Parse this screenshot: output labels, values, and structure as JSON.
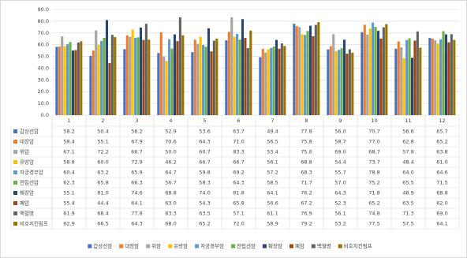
{
  "chart_data": {
    "type": "bar",
    "categories": [
      "1",
      "2",
      "3",
      "4",
      "5",
      "6",
      "7",
      "8",
      "9",
      "10",
      "11",
      "12"
    ],
    "ylim": [
      0,
      90
    ],
    "yticks": [
      {
        "value": 0,
        "label": "0.0"
      },
      {
        "value": 10,
        "label": "10.0"
      },
      {
        "value": 20,
        "label": "20.0"
      },
      {
        "value": 30,
        "label": "30.0"
      },
      {
        "value": 40,
        "label": "40.0"
      },
      {
        "value": 50,
        "label": "50.0"
      },
      {
        "value": 60,
        "label": "60.0"
      },
      {
        "value": 70,
        "label": "70.0"
      },
      {
        "value": 80,
        "label": "80.0"
      },
      {
        "value": 90,
        "label": "90.0"
      }
    ],
    "grid": true,
    "legend": "bottom",
    "series": [
      {
        "name": "갑상선암",
        "color": "#4472c4",
        "values": [
          58.2,
          50.4,
          56.2,
          52.9,
          53.6,
          63.7,
          49.4,
          77.8,
          56.0,
          70.7,
          56.6,
          65.7
        ],
        "value_labels": [
          "58.2",
          "50.4",
          "56.2",
          "52.9",
          "53.6",
          "63.7",
          "49.4",
          "77.8",
          "56.0",
          "70.7",
          "56.6",
          "65.7"
        ]
      },
      {
        "name": "대장암",
        "color": "#ed7d31",
        "values": [
          58.4,
          55.1,
          67.9,
          70.6,
          64.3,
          71.0,
          56.5,
          75.8,
          58.7,
          77.0,
          62.8,
          65.2
        ],
        "value_labels": [
          "58.4",
          "55.1",
          "67.9",
          "70.6",
          "64.3",
          "71.0",
          "56.5",
          "75.8",
          "58.7",
          "77.0",
          "62.8",
          "65.2"
        ]
      },
      {
        "name": "위암",
        "color": "#a5a5a5",
        "values": [
          67.1,
          72.2,
          66.7,
          50.0,
          60.7,
          83.3,
          53.4,
          75.0,
          69.0,
          68.7,
          57.8,
          63.8
        ],
        "value_labels": [
          "67.1",
          "72.2",
          "66.7",
          "50.0",
          "60.7",
          "83.3",
          "53.4",
          "75.0",
          "69.0",
          "68.7",
          "57.8",
          "63.8"
        ]
      },
      {
        "name": "유방암",
        "color": "#ffc000",
        "values": [
          58.8,
          60.0,
          72.9,
          46.2,
          66.7,
          66.7,
          56.1,
          68.8,
          54.4,
          73.7,
          48.4,
          61.0
        ],
        "value_labels": [
          "58.8",
          "60.0",
          "72.9",
          "46.2",
          "66.7",
          "66.7",
          "56.1",
          "68.8",
          "54.4",
          "73.7",
          "48.4",
          "61.0"
        ]
      },
      {
        "name": "자궁경부암",
        "color": "#5b9bd5",
        "values": [
          60.4,
          63.2,
          65.9,
          64.7,
          59.8,
          69.2,
          57.2,
          68.3,
          55.7,
          78.8,
          64.0,
          64.6
        ],
        "value_labels": [
          "60.4",
          "63.2",
          "65.9",
          "64.7",
          "59.8",
          "69.2",
          "57.2",
          "68.3",
          "55.7",
          "78.8",
          "64.0",
          "64.6"
        ]
      },
      {
        "name": "전립선암",
        "color": "#70ad47",
        "values": [
          62.3,
          65.8,
          66.3,
          56.7,
          58.3,
          64.3,
          58.5,
          71.7,
          57.0,
          75.2,
          65.5,
          71.5
        ],
        "value_labels": [
          "62.3",
          "65.8",
          "66.3",
          "56.7",
          "58.3",
          "64.3",
          "58.5",
          "71.7",
          "57.0",
          "75.2",
          "65.5",
          "71.5"
        ]
      },
      {
        "name": "췌장암",
        "color": "#264478",
        "values": [
          55.1,
          81.0,
          74.6,
          68.8,
          74.0,
          81.8,
          64.1,
          76.2,
          64.3,
          71.8,
          48.9,
          68.8
        ],
        "value_labels": [
          "55.1",
          "81.0",
          "74.6",
          "68.8",
          "74.0",
          "81.8",
          "64.1",
          "76.2",
          "64.3",
          "71.8",
          "48.9",
          "68.8"
        ]
      },
      {
        "name": "폐암",
        "color": "#9e480e",
        "values": [
          55.4,
          44.4,
          64.1,
          63.0,
          54.3,
          65.8,
          56.6,
          67.2,
          52.3,
          65.2,
          63.5,
          62.0
        ],
        "value_labels": [
          "55.4",
          "44.4",
          "64.1",
          "63.0",
          "54.3",
          "65.8",
          "56.6",
          "67.2",
          "52.3",
          "65.2",
          "63.5",
          "62.0"
        ]
      },
      {
        "name": "백혈병",
        "color": "#636363",
        "values": [
          61.9,
          68.4,
          77.8,
          83.3,
          63.5,
          57.1,
          61.1,
          76.9,
          56.1,
          74.8,
          71.3,
          69.0
        ],
        "value_labels": [
          "61.9",
          "68.4",
          "77.8",
          "83.3",
          "63.5",
          "57.1",
          "61.1",
          "76.9",
          "56.1",
          "74.8",
          "71.3",
          "69.0"
        ]
      },
      {
        "name": "비호지킨림프",
        "color": "#997300",
        "values": [
          62.9,
          66.5,
          64.3,
          68.0,
          65.2,
          72.0,
          58.9,
          79.2,
          53.2,
          77.5,
          57.5,
          64.1
        ],
        "value_labels": [
          "62.9",
          "66.5",
          "64.3",
          "68.0",
          "65.2",
          "72.0",
          "58.9",
          "79.2",
          "53.2",
          "77.5",
          "57.5",
          "64.1"
        ]
      }
    ]
  }
}
